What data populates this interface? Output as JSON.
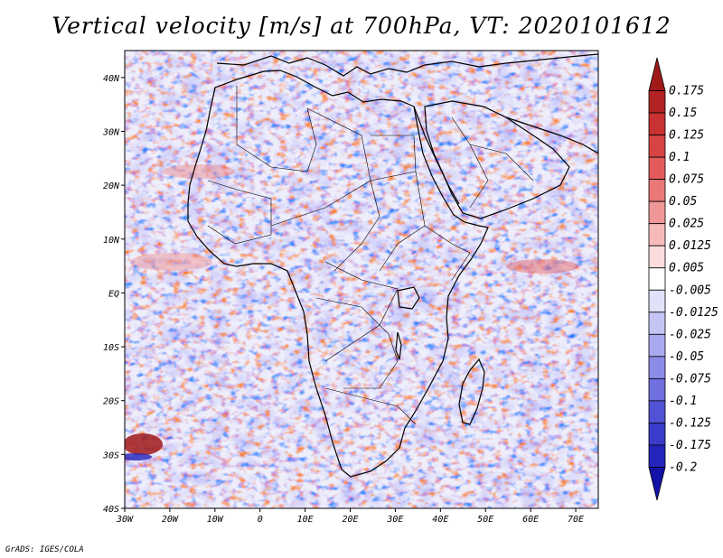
{
  "title": "Vertical velocity [m/s] at 700hPa, VT: 2020101612",
  "credit": "GrADS: IGES/COLA",
  "map": {
    "region": "Africa",
    "lon_range": [
      -30,
      75
    ],
    "lat_range": [
      -40,
      45
    ],
    "lon_ticks": [
      "30W",
      "20W",
      "10W",
      "0",
      "10E",
      "20E",
      "30E",
      "40E",
      "50E",
      "60E",
      "70E"
    ],
    "lat_ticks": [
      "40N",
      "30N",
      "20N",
      "10N",
      "EQ",
      "10S",
      "20S",
      "30S",
      "40S"
    ]
  },
  "colorbar": {
    "labels": [
      "0.175",
      "0.15",
      "0.125",
      "0.1",
      "0.075",
      "0.05",
      "0.025",
      "0.0125",
      "0.005",
      "-0.005",
      "-0.0125",
      "-0.025",
      "-0.05",
      "-0.075",
      "-0.1",
      "-0.125",
      "-0.175",
      "-0.2"
    ],
    "colors": [
      "#a01a1a",
      "#b42323",
      "#c83232",
      "#d84444",
      "#e25a5a",
      "#ea7878",
      "#f09898",
      "#f5bbbb",
      "#fadcdc",
      "#ffffff",
      "#e1e1fa",
      "#c5c5f5",
      "#a9a9ef",
      "#8b8be8",
      "#6f6fe0",
      "#5252d6",
      "#3a3acb",
      "#2424bd",
      "#1212a8"
    ]
  }
}
